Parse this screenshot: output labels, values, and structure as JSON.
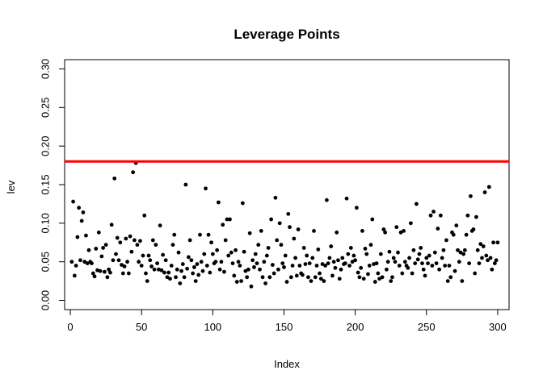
{
  "chart_data": {
    "type": "scatter",
    "title": "Leverage Points",
    "xlabel": "Index",
    "ylabel": "lev",
    "xlim": [
      -4,
      308
    ],
    "ylim": [
      -0.012,
      0.312
    ],
    "x_ticks": [
      0,
      50,
      100,
      150,
      200,
      250,
      300
    ],
    "y_ticks": [
      0.0,
      0.05,
      0.1,
      0.15,
      0.2,
      0.25,
      0.3
    ],
    "x_tick_labels": [
      "0",
      "50",
      "100",
      "150",
      "200",
      "250",
      "300"
    ],
    "y_tick_labels": [
      "0.00",
      "0.05",
      "0.10",
      "0.15",
      "0.20",
      "0.25",
      "0.30"
    ],
    "reference_line": {
      "y": 0.18,
      "color": "#ff0000"
    },
    "point_color": "#000000",
    "grid": false,
    "points": [
      [
        1,
        0.05
      ],
      [
        2,
        0.128
      ],
      [
        3,
        0.032
      ],
      [
        4,
        0.045
      ],
      [
        5,
        0.082
      ],
      [
        6,
        0.12
      ],
      [
        7,
        0.052
      ],
      [
        8,
        0.103
      ],
      [
        9,
        0.114
      ],
      [
        10,
        0.05
      ],
      [
        11,
        0.084
      ],
      [
        12,
        0.048
      ],
      [
        13,
        0.065
      ],
      [
        14,
        0.05
      ],
      [
        15,
        0.048
      ],
      [
        16,
        0.035
      ],
      [
        17,
        0.031
      ],
      [
        18,
        0.067
      ],
      [
        19,
        0.039
      ],
      [
        20,
        0.088
      ],
      [
        21,
        0.038
      ],
      [
        22,
        0.057
      ],
      [
        23,
        0.068
      ],
      [
        24,
        0.037
      ],
      [
        25,
        0.072
      ],
      [
        26,
        0.03
      ],
      [
        27,
        0.04
      ],
      [
        28,
        0.036
      ],
      [
        29,
        0.098
      ],
      [
        30,
        0.052
      ],
      [
        31,
        0.158
      ],
      [
        32,
        0.06
      ],
      [
        33,
        0.081
      ],
      [
        34,
        0.052
      ],
      [
        35,
        0.075
      ],
      [
        36,
        0.046
      ],
      [
        37,
        0.035
      ],
      [
        38,
        0.044
      ],
      [
        39,
        0.08
      ],
      [
        40,
        0.05
      ],
      [
        41,
        0.035
      ],
      [
        42,
        0.083
      ],
      [
        43,
        0.063
      ],
      [
        44,
        0.166
      ],
      [
        45,
        0.078
      ],
      [
        46,
        0.178
      ],
      [
        47,
        0.072
      ],
      [
        48,
        0.05
      ],
      [
        49,
        0.077
      ],
      [
        50,
        0.045
      ],
      [
        51,
        0.058
      ],
      [
        52,
        0.11
      ],
      [
        53,
        0.035
      ],
      [
        54,
        0.025
      ],
      [
        55,
        0.058
      ],
      [
        56,
        0.052
      ],
      [
        57,
        0.044
      ],
      [
        58,
        0.078
      ],
      [
        59,
        0.04
      ],
      [
        60,
        0.072
      ],
      [
        61,
        0.048
      ],
      [
        62,
        0.04
      ],
      [
        63,
        0.097
      ],
      [
        64,
        0.039
      ],
      [
        65,
        0.059
      ],
      [
        66,
        0.036
      ],
      [
        67,
        0.052
      ],
      [
        68,
        0.03
      ],
      [
        69,
        0.036
      ],
      [
        70,
        0.028
      ],
      [
        71,
        0.045
      ],
      [
        72,
        0.072
      ],
      [
        73,
        0.085
      ],
      [
        74,
        0.03
      ],
      [
        75,
        0.04
      ],
      [
        76,
        0.062
      ],
      [
        77,
        0.022
      ],
      [
        78,
        0.038
      ],
      [
        79,
        0.047
      ],
      [
        80,
        0.03
      ],
      [
        81,
        0.15
      ],
      [
        82,
        0.041
      ],
      [
        83,
        0.056
      ],
      [
        84,
        0.078
      ],
      [
        85,
        0.052
      ],
      [
        86,
        0.035
      ],
      [
        87,
        0.043
      ],
      [
        88,
        0.025
      ],
      [
        89,
        0.047
      ],
      [
        90,
        0.033
      ],
      [
        91,
        0.085
      ],
      [
        92,
        0.05
      ],
      [
        93,
        0.038
      ],
      [
        94,
        0.06
      ],
      [
        95,
        0.145
      ],
      [
        96,
        0.045
      ],
      [
        97,
        0.085
      ],
      [
        98,
        0.036
      ],
      [
        99,
        0.075
      ],
      [
        100,
        0.06
      ],
      [
        101,
        0.048
      ],
      [
        102,
        0.05
      ],
      [
        103,
        0.065
      ],
      [
        104,
        0.127
      ],
      [
        105,
        0.04
      ],
      [
        106,
        0.05
      ],
      [
        107,
        0.098
      ],
      [
        108,
        0.037
      ],
      [
        109,
        0.078
      ],
      [
        110,
        0.105
      ],
      [
        111,
        0.058
      ],
      [
        112,
        0.105
      ],
      [
        113,
        0.062
      ],
      [
        114,
        0.048
      ],
      [
        115,
        0.032
      ],
      [
        116,
        0.065
      ],
      [
        117,
        0.024
      ],
      [
        118,
        0.05
      ],
      [
        119,
        0.045
      ],
      [
        120,
        0.025
      ],
      [
        121,
        0.126
      ],
      [
        122,
        0.063
      ],
      [
        123,
        0.038
      ],
      [
        124,
        0.03
      ],
      [
        125,
        0.04
      ],
      [
        126,
        0.087
      ],
      [
        127,
        0.018
      ],
      [
        128,
        0.052
      ],
      [
        129,
        0.043
      ],
      [
        130,
        0.06
      ],
      [
        131,
        0.048
      ],
      [
        132,
        0.072
      ],
      [
        133,
        0.04
      ],
      [
        134,
        0.09
      ],
      [
        135,
        0.03
      ],
      [
        136,
        0.05
      ],
      [
        137,
        0.022
      ],
      [
        138,
        0.058
      ],
      [
        139,
        0.068
      ],
      [
        140,
        0.03
      ],
      [
        141,
        0.105
      ],
      [
        142,
        0.046
      ],
      [
        143,
        0.035
      ],
      [
        144,
        0.133
      ],
      [
        145,
        0.078
      ],
      [
        146,
        0.04
      ],
      [
        147,
        0.1
      ],
      [
        148,
        0.072
      ],
      [
        149,
        0.048
      ],
      [
        150,
        0.043
      ],
      [
        151,
        0.058
      ],
      [
        152,
        0.024
      ],
      [
        153,
        0.112
      ],
      [
        154,
        0.095
      ],
      [
        155,
        0.03
      ],
      [
        156,
        0.045
      ],
      [
        157,
        0.08
      ],
      [
        158,
        0.055
      ],
      [
        159,
        0.032
      ],
      [
        160,
        0.092
      ],
      [
        161,
        0.045
      ],
      [
        162,
        0.035
      ],
      [
        163,
        0.033
      ],
      [
        164,
        0.068
      ],
      [
        165,
        0.047
      ],
      [
        166,
        0.058
      ],
      [
        167,
        0.03
      ],
      [
        168,
        0.048
      ],
      [
        169,
        0.025
      ],
      [
        170,
        0.055
      ],
      [
        171,
        0.09
      ],
      [
        172,
        0.03
      ],
      [
        173,
        0.045
      ],
      [
        174,
        0.066
      ],
      [
        175,
        0.035
      ],
      [
        176,
        0.028
      ],
      [
        177,
        0.047
      ],
      [
        178,
        0.025
      ],
      [
        179,
        0.045
      ],
      [
        180,
        0.13
      ],
      [
        181,
        0.048
      ],
      [
        182,
        0.055
      ],
      [
        183,
        0.07
      ],
      [
        184,
        0.032
      ],
      [
        185,
        0.05
      ],
      [
        186,
        0.042
      ],
      [
        187,
        0.088
      ],
      [
        188,
        0.052
      ],
      [
        189,
        0.028
      ],
      [
        190,
        0.04
      ],
      [
        191,
        0.055
      ],
      [
        192,
        0.047
      ],
      [
        193,
        0.048
      ],
      [
        194,
        0.132
      ],
      [
        195,
        0.06
      ],
      [
        196,
        0.045
      ],
      [
        197,
        0.068
      ],
      [
        198,
        0.05
      ],
      [
        199,
        0.058
      ],
      [
        200,
        0.052
      ],
      [
        201,
        0.12
      ],
      [
        202,
        0.036
      ],
      [
        203,
        0.03
      ],
      [
        204,
        0.042
      ],
      [
        205,
        0.09
      ],
      [
        206,
        0.028
      ],
      [
        207,
        0.067
      ],
      [
        208,
        0.06
      ],
      [
        209,
        0.034
      ],
      [
        210,
        0.045
      ],
      [
        211,
        0.072
      ],
      [
        212,
        0.105
      ],
      [
        213,
        0.047
      ],
      [
        214,
        0.024
      ],
      [
        215,
        0.048
      ],
      [
        216,
        0.035
      ],
      [
        217,
        0.028
      ],
      [
        218,
        0.06
      ],
      [
        219,
        0.03
      ],
      [
        220,
        0.092
      ],
      [
        221,
        0.088
      ],
      [
        222,
        0.04
      ],
      [
        223,
        0.05
      ],
      [
        224,
        0.063
      ],
      [
        225,
        0.025
      ],
      [
        226,
        0.03
      ],
      [
        227,
        0.055
      ],
      [
        228,
        0.05
      ],
      [
        229,
        0.095
      ],
      [
        230,
        0.062
      ],
      [
        231,
        0.045
      ],
      [
        232,
        0.088
      ],
      [
        233,
        0.035
      ],
      [
        234,
        0.09
      ],
      [
        235,
        0.05
      ],
      [
        236,
        0.045
      ],
      [
        237,
        0.042
      ],
      [
        238,
        0.055
      ],
      [
        239,
        0.1
      ],
      [
        240,
        0.035
      ],
      [
        241,
        0.065
      ],
      [
        242,
        0.048
      ],
      [
        243,
        0.125
      ],
      [
        244,
        0.053
      ],
      [
        245,
        0.06
      ],
      [
        246,
        0.068
      ],
      [
        247,
        0.048
      ],
      [
        248,
        0.04
      ],
      [
        249,
        0.032
      ],
      [
        250,
        0.055
      ],
      [
        251,
        0.048
      ],
      [
        252,
        0.058
      ],
      [
        253,
        0.11
      ],
      [
        254,
        0.045
      ],
      [
        255,
        0.115
      ],
      [
        256,
        0.062
      ],
      [
        257,
        0.048
      ],
      [
        258,
        0.093
      ],
      [
        259,
        0.04
      ],
      [
        260,
        0.11
      ],
      [
        261,
        0.055
      ],
      [
        262,
        0.065
      ],
      [
        263,
        0.045
      ],
      [
        264,
        0.078
      ],
      [
        265,
        0.025
      ],
      [
        266,
        0.045
      ],
      [
        267,
        0.03
      ],
      [
        268,
        0.088
      ],
      [
        269,
        0.085
      ],
      [
        270,
        0.038
      ],
      [
        271,
        0.097
      ],
      [
        272,
        0.065
      ],
      [
        273,
        0.05
      ],
      [
        274,
        0.062
      ],
      [
        275,
        0.025
      ],
      [
        276,
        0.06
      ],
      [
        277,
        0.065
      ],
      [
        278,
        0.085
      ],
      [
        279,
        0.11
      ],
      [
        280,
        0.048
      ],
      [
        281,
        0.135
      ],
      [
        282,
        0.09
      ],
      [
        283,
        0.092
      ],
      [
        284,
        0.035
      ],
      [
        285,
        0.108
      ],
      [
        286,
        0.065
      ],
      [
        287,
        0.048
      ],
      [
        288,
        0.073
      ],
      [
        289,
        0.055
      ],
      [
        290,
        0.07
      ],
      [
        291,
        0.14
      ],
      [
        292,
        0.058
      ],
      [
        293,
        0.052
      ],
      [
        294,
        0.147
      ],
      [
        295,
        0.055
      ],
      [
        296,
        0.04
      ],
      [
        297,
        0.075
      ],
      [
        298,
        0.048
      ],
      [
        299,
        0.052
      ],
      [
        300,
        0.075
      ]
    ]
  }
}
